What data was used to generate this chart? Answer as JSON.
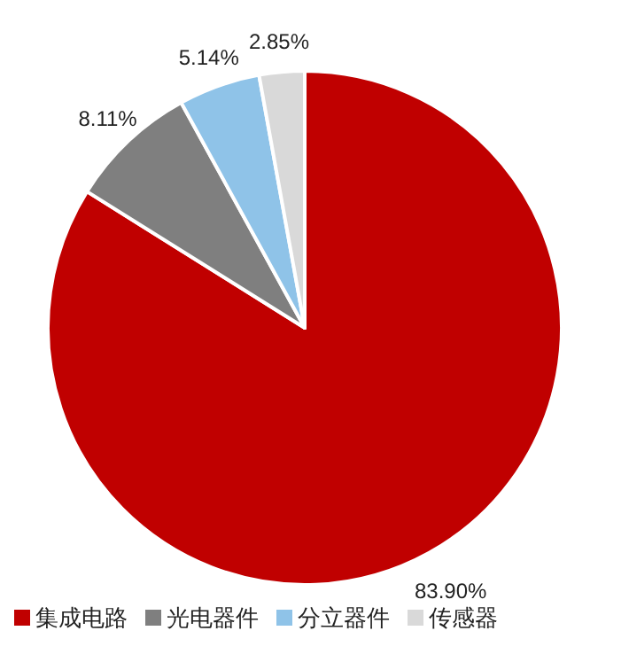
{
  "chart_data": {
    "type": "pie",
    "categories": [
      "集成电路",
      "光电器件",
      "分立器件",
      "传感器"
    ],
    "values": [
      83.9,
      8.11,
      5.14,
      2.85
    ],
    "colors": [
      "#c00000",
      "#7f7f7f",
      "#8fc3e8",
      "#d9d9d9"
    ],
    "value_labels": [
      "83.90%",
      "8.11%",
      "5.14%",
      "2.85%"
    ],
    "legend": "bottom"
  }
}
